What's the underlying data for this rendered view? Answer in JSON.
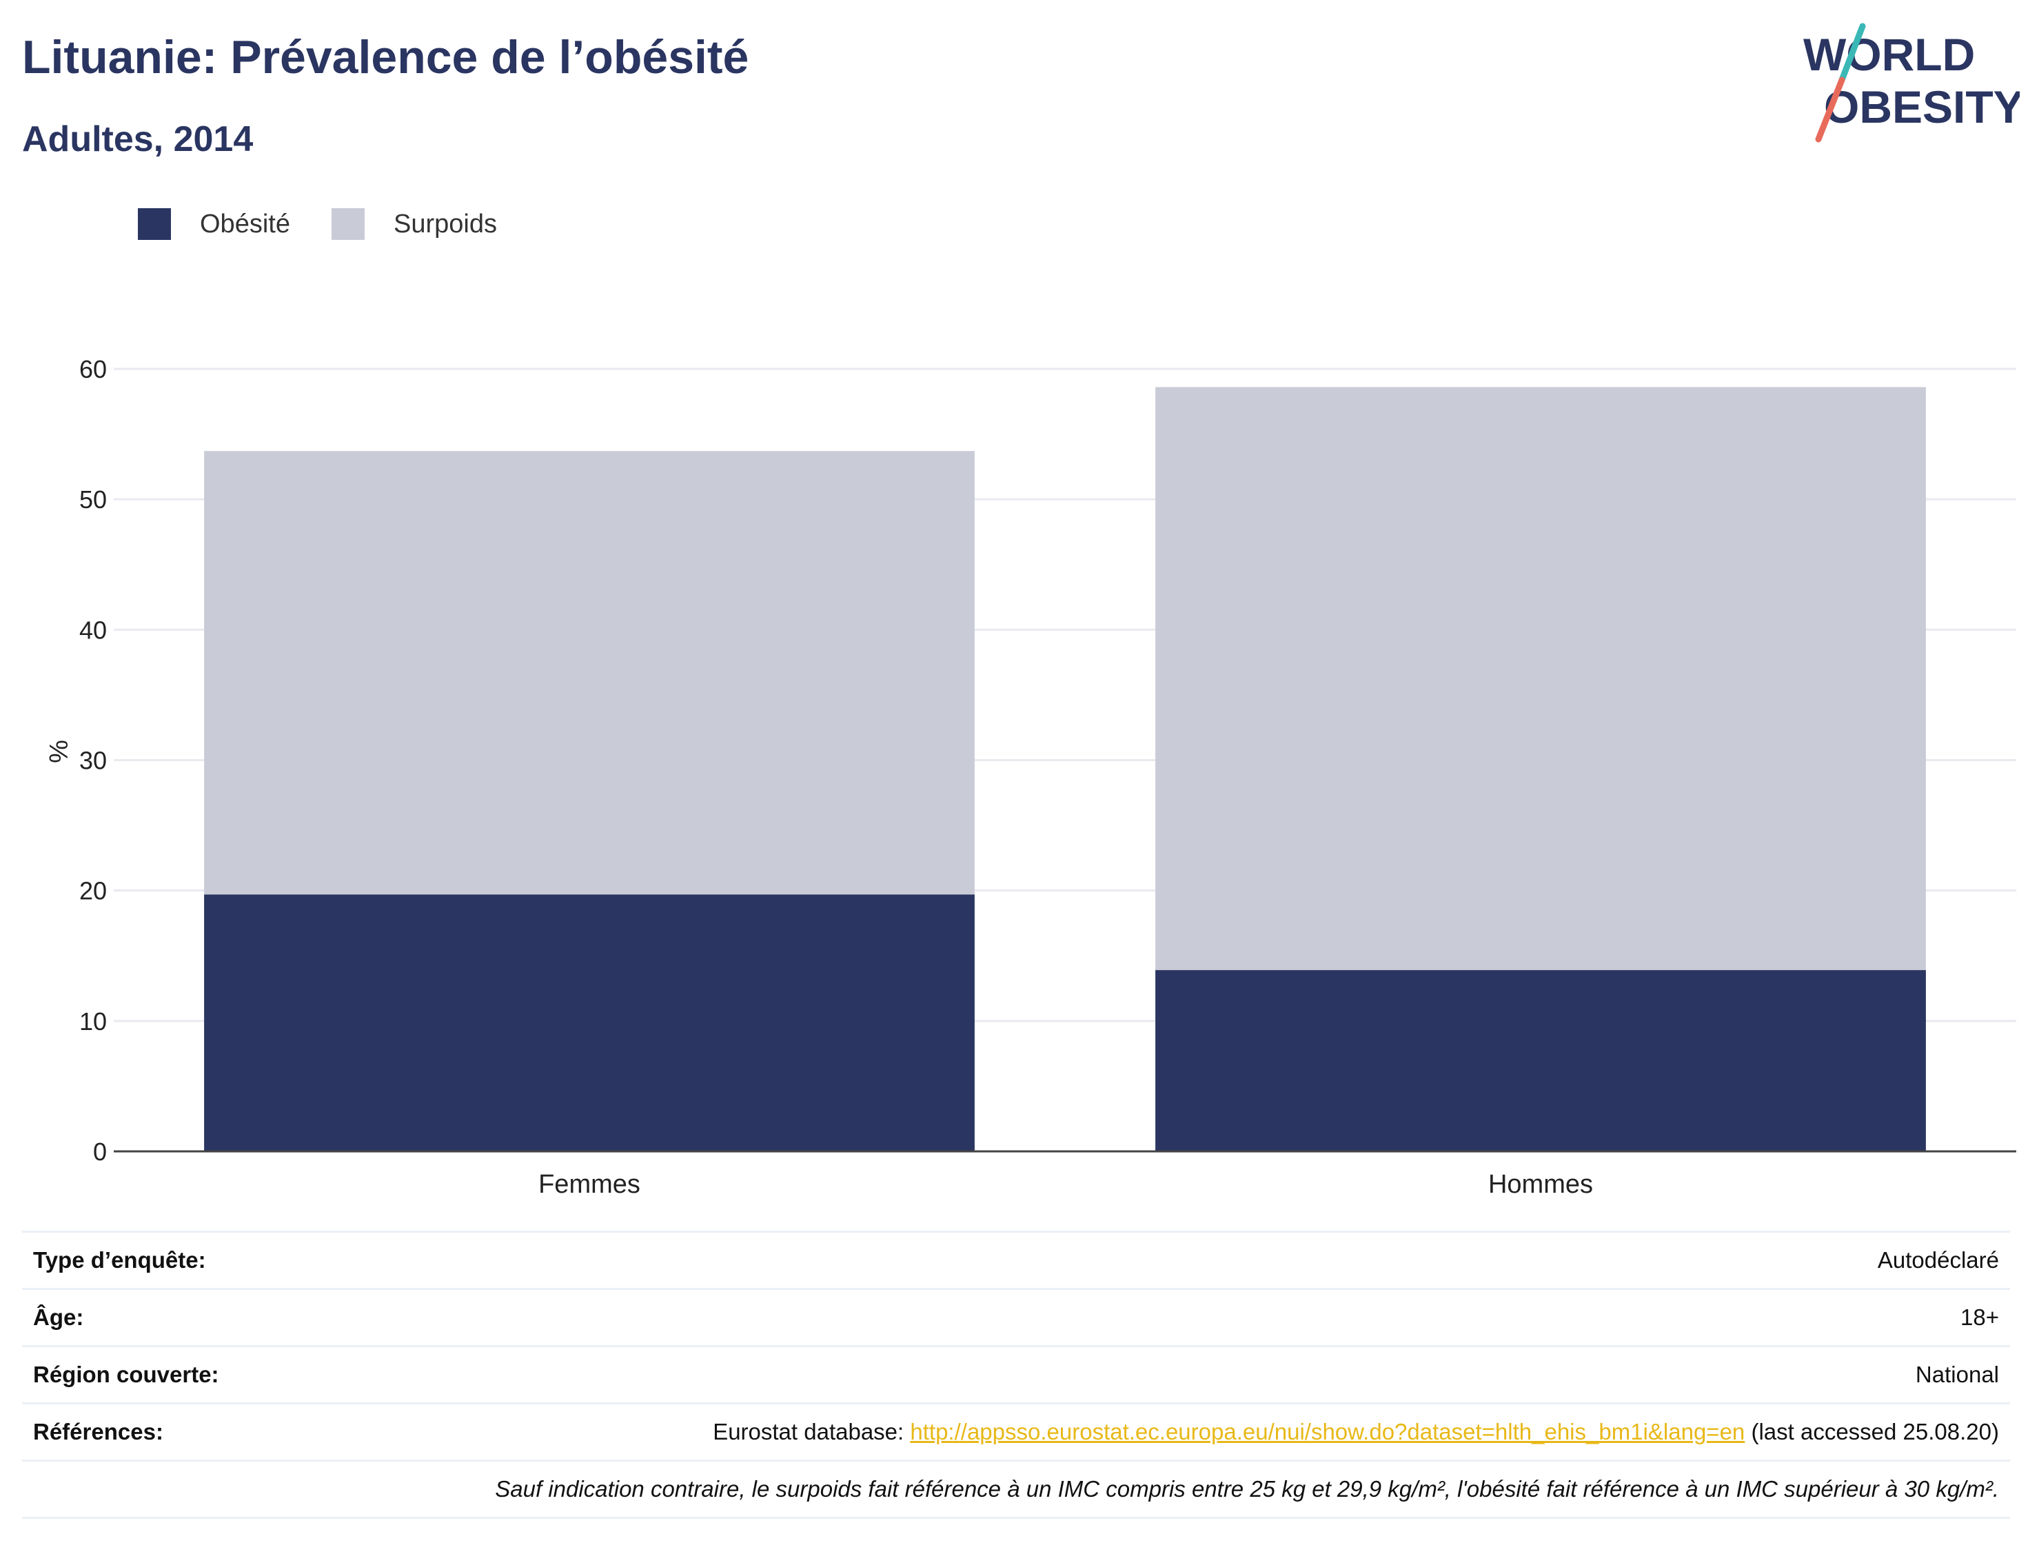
{
  "header": {
    "title": "Lituanie: Prévalence de l’obésité",
    "subtitle": "Adultes, 2014"
  },
  "logo": {
    "line1": "WORLD",
    "line2": "OBESITY",
    "colors": {
      "text": "#2a3561",
      "slash_teal": "#3bb8b5",
      "slash_coral": "#e76a5b"
    }
  },
  "legend": [
    {
      "label": "Obésité",
      "color": "#2a3561"
    },
    {
      "label": "Surpoids",
      "color": "#c9cbd7"
    }
  ],
  "chart_data": {
    "type": "bar",
    "stacked": true,
    "categories": [
      "Femmes",
      "Hommes"
    ],
    "series": [
      {
        "name": "Obésité",
        "values": [
          19.7,
          13.9
        ],
        "color": "#2a3561"
      },
      {
        "name": "Surpoids",
        "values": [
          34.0,
          44.7
        ],
        "color": "#c9cbd7"
      }
    ],
    "ylabel": "%",
    "ylim": [
      0,
      60
    ],
    "yticks": [
      0,
      10,
      20,
      30,
      40,
      50,
      60
    ],
    "grid": true,
    "legend_position": "top-left"
  },
  "info": {
    "survey_type": {
      "label": "Type d’enquête:",
      "value": "Autodéclaré"
    },
    "age": {
      "label": "Âge:",
      "value": "18+"
    },
    "region": {
      "label": "Région couverte:",
      "value": "National"
    },
    "references": {
      "label": "Références:",
      "prefix": "Eurostat database: ",
      "link": "http://appsso.eurostat.ec.europa.eu/nui/show.do?dataset=hlth_ehis_bm1i&lang=en",
      "suffix": " (last accessed 25.08.20)"
    },
    "footnote": "Sauf indication contraire, le surpoids fait référence à un IMC compris entre 25 kg et 29,9 kg/m², l'obésité fait référence à un IMC supérieur à 30 kg/m²."
  }
}
